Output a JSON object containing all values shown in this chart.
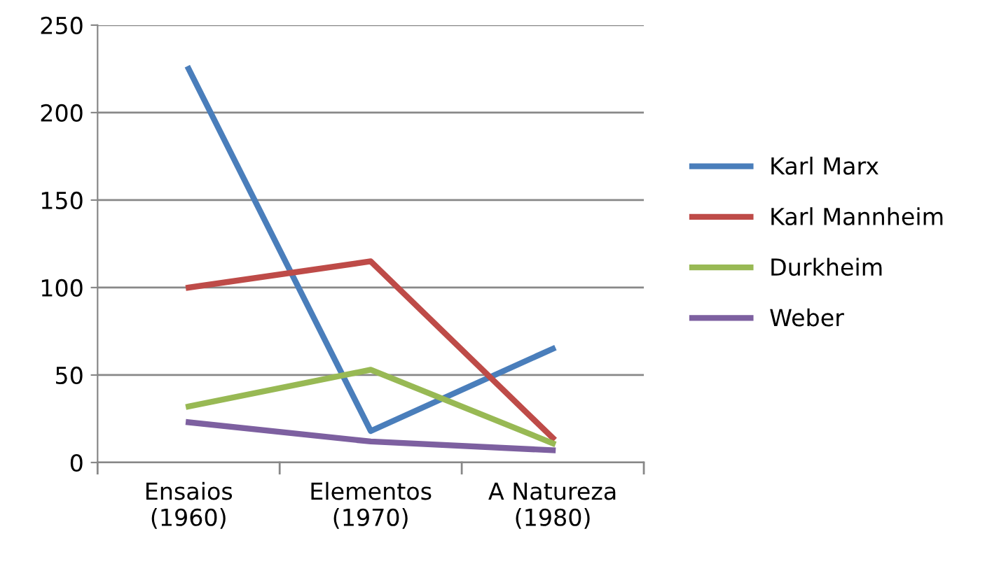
{
  "chart_data": {
    "type": "line",
    "categories": [
      "Ensaios\n(1960)",
      "Elementos\n(1970)",
      "A Natureza\n(1980)"
    ],
    "series": [
      {
        "name": "Karl Marx",
        "color": "#4a7ebb",
        "values": [
          225,
          18,
          65
        ]
      },
      {
        "name": "Karl Mannheim",
        "color": "#be4b48",
        "values": [
          100,
          115,
          14
        ]
      },
      {
        "name": "Durkheim",
        "color": "#98b954",
        "values": [
          32,
          53,
          11
        ]
      },
      {
        "name": "Weber",
        "color": "#7d60a0",
        "values": [
          23,
          12,
          7
        ]
      }
    ],
    "ylim": [
      0,
      250
    ],
    "yticks": [
      0,
      50,
      100,
      150,
      200,
      250
    ],
    "grid": "y",
    "legend": "right",
    "marker": "none",
    "line_style": "solid"
  }
}
